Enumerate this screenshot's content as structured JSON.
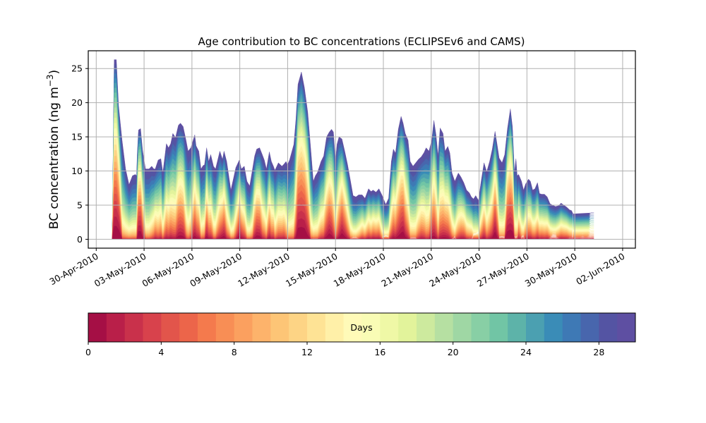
{
  "chart_data": [
    {
      "type": "area",
      "stacked": true,
      "title": "Age contribution to BC concentrations (ECLIPSEv6 and CAMS)",
      "xlabel": "",
      "ylabel": "BC concentration (ng m",
      "ylabel_superscript": "−3",
      "ylabel_suffix": ")",
      "x_unit": "days since 30-Apr-2010",
      "xlim": [
        -0.5,
        33.8
      ],
      "ylim": [
        -1.3,
        27.6
      ],
      "grid": true,
      "yticks": [
        0,
        5,
        10,
        15,
        20,
        25
      ],
      "ytick_labels": [
        "0",
        "5",
        "10",
        "15",
        "20",
        "25"
      ],
      "xticks": [
        0,
        3,
        6,
        9,
        12,
        15,
        18,
        21,
        24,
        27,
        30,
        33
      ],
      "xtick_labels": [
        "30-Apr-2010",
        "03-May-2010",
        "06-May-2010",
        "09-May-2010",
        "12-May-2010",
        "15-May-2010",
        "18-May-2010",
        "21-May-2010",
        "24-May-2010",
        "27-May-2010",
        "30-May-2010",
        "02-Jun-2010"
      ],
      "series_description": "Total BC concentration (top of stacked age layers, 0-30 days)",
      "x": [
        1.0,
        1.13,
        1.26,
        1.4,
        1.62,
        1.84,
        2.06,
        2.27,
        2.45,
        2.53,
        2.57,
        2.65,
        2.78,
        2.91,
        3.09,
        3.31,
        3.48,
        3.61,
        3.7,
        3.88,
        4.05,
        4.18,
        4.4,
        4.53,
        4.67,
        4.8,
        4.97,
        5.15,
        5.28,
        5.45,
        5.63,
        5.76,
        5.93,
        6.18,
        6.26,
        6.43,
        6.57,
        6.7,
        6.79,
        6.92,
        7.05,
        7.18,
        7.35,
        7.48,
        7.75,
        7.92,
        8.01,
        8.18,
        8.44,
        8.62,
        8.75,
        8.97,
        9.1,
        9.28,
        9.45,
        9.62,
        9.8,
        9.93,
        10.06,
        10.24,
        10.41,
        10.54,
        10.67,
        10.85,
        10.98,
        11.11,
        11.2,
        11.42,
        11.64,
        11.77,
        11.9,
        11.99,
        12.12,
        12.39,
        12.52,
        12.65,
        12.86,
        13.05,
        13.26,
        13.44,
        13.61,
        13.74,
        13.87,
        14.09,
        14.26,
        14.44,
        14.61,
        14.75,
        14.87,
        15.0,
        15.09,
        15.22,
        15.4,
        15.58,
        15.75,
        15.93,
        16.1,
        16.28,
        16.45,
        16.67,
        16.85,
        17.07,
        17.23,
        17.36,
        17.54,
        17.72,
        17.93,
        18.15,
        18.33,
        18.5,
        18.63,
        18.76,
        18.94,
        19.11,
        19.24,
        19.37,
        19.55,
        19.68,
        19.86,
        20.03,
        20.2,
        20.38,
        20.55,
        20.68,
        20.86,
        21.03,
        21.17,
        21.3,
        21.43,
        21.56,
        21.74,
        21.87,
        22.04,
        22.17,
        22.3,
        22.48,
        22.7,
        22.87,
        23.04,
        23.22,
        23.39,
        23.52,
        23.65,
        23.79,
        23.96,
        24.13,
        24.31,
        24.48,
        24.66,
        24.83,
        25.0,
        25.13,
        25.26,
        25.44,
        25.61,
        25.78,
        25.96,
        26.09,
        26.22,
        26.31,
        26.39,
        26.48,
        26.66,
        26.79,
        26.92,
        27.1,
        27.22,
        27.36,
        27.5,
        27.66,
        27.79,
        27.92,
        28.1,
        28.27,
        28.45,
        28.62,
        28.79,
        28.97,
        29.14,
        29.32,
        29.5,
        29.68,
        29.8,
        29.93,
        30.06,
        30.28,
        30.5,
        30.67,
        30.85,
        31.02,
        31.2,
        31.37,
        31.51,
        31.64,
        31.9
      ],
      "total": [
        0.2,
        26.3,
        26.3,
        19.6,
        14.5,
        10.3,
        8.0,
        9.3,
        9.5,
        9.3,
        12.4,
        16.0,
        16.2,
        13.0,
        10.3,
        10.3,
        10.7,
        10.3,
        10.3,
        11.6,
        11.8,
        9.8,
        14.0,
        13.4,
        14.0,
        15.5,
        14.9,
        16.7,
        17.0,
        16.5,
        14.5,
        12.9,
        13.4,
        15.3,
        13.7,
        12.9,
        10.3,
        10.8,
        10.9,
        13.4,
        11.4,
        12.4,
        10.7,
        10.3,
        12.9,
        11.7,
        12.9,
        11.4,
        7.2,
        9.1,
        10.5,
        11.6,
        10.3,
        10.7,
        8.5,
        7.8,
        10.3,
        12.2,
        13.2,
        13.4,
        12.4,
        11.6,
        10.3,
        12.8,
        11.4,
        10.7,
        10.1,
        11.2,
        10.7,
        11.0,
        11.4,
        10.9,
        11.6,
        13.9,
        17.6,
        22.7,
        24.5,
        22.2,
        18.6,
        13.4,
        8.5,
        9.3,
        9.8,
        11.4,
        12.2,
        15.0,
        15.7,
        16.1,
        15.7,
        11.4,
        13.9,
        15.0,
        14.7,
        12.9,
        11.0,
        8.7,
        6.4,
        6.2,
        6.5,
        6.5,
        6.0,
        7.4,
        7.0,
        7.2,
        6.9,
        7.4,
        6.4,
        5.1,
        6.0,
        11.4,
        13.2,
        12.6,
        16.1,
        18.0,
        17.0,
        15.5,
        14.5,
        11.4,
        10.7,
        11.2,
        11.7,
        12.1,
        12.7,
        13.4,
        12.9,
        14.5,
        17.4,
        15.3,
        12.2,
        16.3,
        15.5,
        12.9,
        13.6,
        12.6,
        9.7,
        8.5,
        9.7,
        9.1,
        8.3,
        7.2,
        6.8,
        6.2,
        5.9,
        6.4,
        5.7,
        8.5,
        11.2,
        9.9,
        11.4,
        13.2,
        15.8,
        13.9,
        11.9,
        11.2,
        12.4,
        16.2,
        19.1,
        16.5,
        9.8,
        11.8,
        9.3,
        9.5,
        8.5,
        7.2,
        8.1,
        8.8,
        8.5,
        7.2,
        7.4,
        8.3,
        6.7,
        6.6,
        6.6,
        6.2,
        5.2,
        5.0,
        4.8,
        4.9,
        5.3,
        5.0,
        4.7,
        4.3,
        4.2,
        3.5,
        3.5,
        3.5,
        3.5,
        3.4,
        3.6,
        3.9,
        3.9,
        4.3,
        4.5,
        4.65
      ],
      "colorbar": {
        "label": "Days",
        "orientation": "horizontal",
        "range": [
          0,
          30
        ],
        "ticks": [
          0,
          4,
          8,
          12,
          16,
          20,
          24,
          28
        ],
        "tick_labels": [
          "0",
          "4",
          "8",
          "12",
          "16",
          "20",
          "24",
          "28"
        ],
        "bins": 30,
        "colormap": "Spectral",
        "colors": [
          "#a50f45",
          "#b91f49",
          "#c9314b",
          "#d8424c",
          "#e2554b",
          "#ec654a",
          "#f47a4d",
          "#f88e55",
          "#fba05f",
          "#fdb36b",
          "#fdc576",
          "#fdd485",
          "#fee395",
          "#fff0a8",
          "#fffab8",
          "#f9fcb5",
          "#eff8a6",
          "#e2f39b",
          "#cdea9e",
          "#b6e0a2",
          "#9fd7a4",
          "#88cfa5",
          "#71c5a5",
          "#5db3a9",
          "#4ba0b1",
          "#3a8cb7",
          "#3e79b5",
          "#4866ad",
          "#5454a3",
          "#5e4fa2"
        ]
      }
    }
  ]
}
